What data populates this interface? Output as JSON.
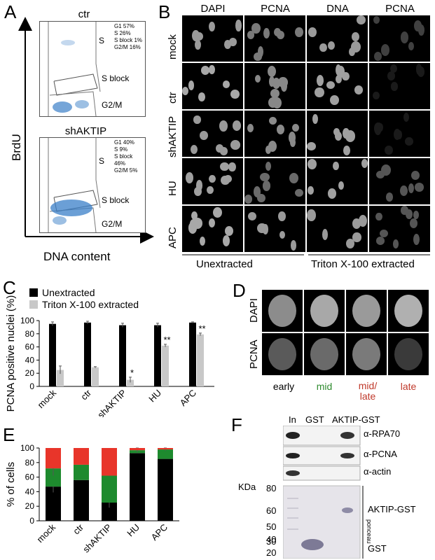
{
  "panels": {
    "A": {
      "letter": "A",
      "y_axis_label": "BrdU",
      "x_axis_label": "DNA content",
      "plots": [
        {
          "title": "ctr",
          "gates": [
            "S",
            "S block",
            "G2/M"
          ],
          "stats": [
            "G1          57%",
            "S             26%",
            "S block   1%",
            "G2/M      16%"
          ]
        },
        {
          "title": "shAKTIP",
          "gates": [
            "S",
            "S block",
            "G2/M"
          ],
          "stats": [
            "G1          40%",
            "S              9%",
            "S block  46%",
            "G2/M       5%"
          ]
        }
      ]
    },
    "B": {
      "letter": "B",
      "columns": [
        "DAPI",
        "PCNA",
        "DNA",
        "PCNA"
      ],
      "rows": [
        "mock",
        "ctr",
        "shAKTIP",
        "HU",
        "APC"
      ],
      "group_labels": [
        "Unextracted",
        "Triton X-100 extracted"
      ]
    },
    "C": {
      "letter": "C"
    },
    "D": {
      "letter": "D",
      "rows": [
        "DAPI",
        "PCNA"
      ],
      "phases": [
        {
          "label": "early",
          "color": "#000000"
        },
        {
          "label": "mid",
          "color": "#2e8b2e"
        },
        {
          "label": "mid/\nlate",
          "color": "#c0392b"
        },
        {
          "label": "late",
          "color": "#c0392b"
        }
      ]
    },
    "E": {
      "letter": "E"
    },
    "F": {
      "letter": "F",
      "lanes": [
        "In",
        "GST",
        "AKTIP-GST"
      ],
      "blot_labels": [
        "α-RPA70",
        "α-PCNA",
        "α-actin"
      ],
      "kda_label": "KDa",
      "markers": [
        "80",
        "60",
        "50",
        "40",
        "30",
        "20"
      ],
      "gel_labels": [
        "AKTIP-GST",
        "GST"
      ],
      "stain_label": "ponceau"
    }
  },
  "chart_data": [
    {
      "type": "bar",
      "panel": "C",
      "ylabel": "PCNA positive nuclei (%)",
      "categories": [
        "mock",
        "ctr",
        "shAKTIP",
        "HU",
        "APC"
      ],
      "ylim": [
        0,
        100
      ],
      "yticks": [
        "0",
        "20",
        "40",
        "60",
        "80",
        "100"
      ],
      "legend_position": "top-left",
      "series": [
        {
          "name": "Unextracted",
          "color": "#000000",
          "values": [
            95,
            97,
            93,
            93,
            97
          ],
          "errors": [
            3,
            2,
            3,
            3,
            1
          ]
        },
        {
          "name": "Triton X-100 extracted",
          "color": "#c8c8c8",
          "values": [
            25,
            29,
            10,
            62,
            79
          ],
          "errors": [
            6,
            1,
            4,
            2,
            2
          ]
        }
      ],
      "significance": [
        null,
        null,
        "*",
        "**",
        "**"
      ]
    },
    {
      "type": "bar",
      "stacked": true,
      "panel": "E",
      "ylabel": "% of cells",
      "categories": [
        "mock",
        "ctr",
        "shAKTIP",
        "HU",
        "APC"
      ],
      "ylim": [
        0,
        100
      ],
      "yticks": [
        "0",
        "20",
        "40",
        "60",
        "80",
        "100"
      ],
      "series": [
        {
          "color": "#000000",
          "values": [
            47,
            56,
            25,
            93,
            85
          ],
          "errors": [
            8,
            0,
            7,
            0,
            0
          ]
        },
        {
          "color": "#1e8a2e",
          "values": [
            25,
            21,
            37,
            4,
            13
          ],
          "errors": [
            10,
            0,
            1,
            3,
            2
          ]
        },
        {
          "color": "#e8352a",
          "values": [
            28,
            23,
            38,
            3,
            2
          ],
          "errors": [
            0,
            0,
            0,
            0,
            0
          ]
        }
      ]
    }
  ]
}
